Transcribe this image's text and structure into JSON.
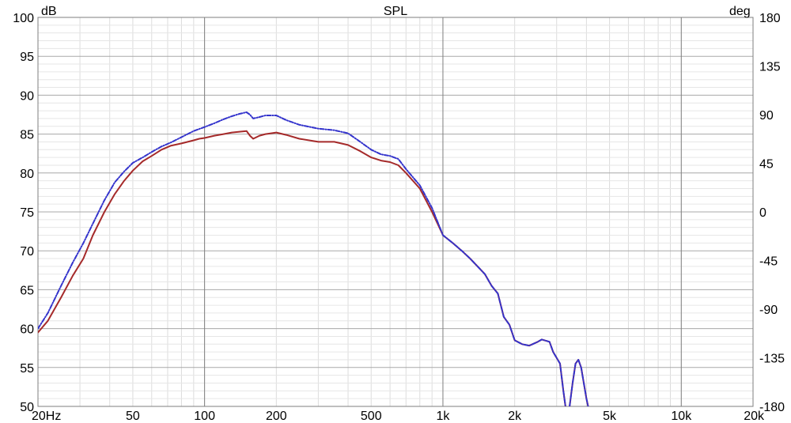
{
  "chart_data": {
    "type": "line",
    "title": "SPL",
    "y_unit_left": "dB",
    "y_unit_right": "deg",
    "x_scale": "log",
    "xlim": [
      20,
      20000
    ],
    "ylim": [
      50,
      100
    ],
    "ylim_right": [
      -180,
      180
    ],
    "grid": true,
    "x_ticks": [
      {
        "value": 20,
        "label": "20Hz"
      },
      {
        "value": 50,
        "label": "50"
      },
      {
        "value": 100,
        "label": "100"
      },
      {
        "value": 200,
        "label": "200"
      },
      {
        "value": 500,
        "label": "500"
      },
      {
        "value": 1000,
        "label": "1k"
      },
      {
        "value": 2000,
        "label": "2k"
      },
      {
        "value": 5000,
        "label": "5k"
      },
      {
        "value": 10000,
        "label": "10k"
      },
      {
        "value": 20000,
        "label": "20k"
      }
    ],
    "y_ticks": [
      50,
      55,
      60,
      65,
      70,
      75,
      80,
      85,
      90,
      95,
      100
    ],
    "y_ticks_right": [
      -180,
      -135,
      -90,
      -45,
      0,
      45,
      90,
      135,
      180
    ],
    "series": [
      {
        "color": "#a52a2a",
        "style": "solid",
        "points": [
          [
            20,
            59.5
          ],
          [
            22,
            61
          ],
          [
            25,
            64
          ],
          [
            28,
            66.8
          ],
          [
            31,
            69
          ],
          [
            34,
            72
          ],
          [
            38,
            75
          ],
          [
            42,
            77.3
          ],
          [
            46,
            79
          ],
          [
            50,
            80.3
          ],
          [
            55,
            81.5
          ],
          [
            60,
            82.2
          ],
          [
            66,
            83
          ],
          [
            72,
            83.5
          ],
          [
            80,
            83.8
          ],
          [
            90,
            84.2
          ],
          [
            95,
            84.4
          ],
          [
            100,
            84.5
          ],
          [
            110,
            84.8
          ],
          [
            120,
            85
          ],
          [
            130,
            85.2
          ],
          [
            140,
            85.3
          ],
          [
            150,
            85.4
          ],
          [
            155,
            84.8
          ],
          [
            160,
            84.4
          ],
          [
            170,
            84.8
          ],
          [
            180,
            85
          ],
          [
            190,
            85.1
          ],
          [
            200,
            85.2
          ],
          [
            220,
            84.9
          ],
          [
            250,
            84.4
          ],
          [
            300,
            84
          ],
          [
            350,
            84
          ],
          [
            400,
            83.6
          ],
          [
            450,
            82.8
          ],
          [
            500,
            82
          ],
          [
            550,
            81.6
          ],
          [
            600,
            81.4
          ],
          [
            650,
            81
          ],
          [
            700,
            80
          ],
          [
            800,
            78
          ],
          [
            900,
            75
          ],
          [
            1000,
            72
          ],
          [
            1100,
            71
          ],
          [
            1200,
            70
          ],
          [
            1300,
            69
          ],
          [
            1500,
            67
          ],
          [
            1600,
            65.5
          ],
          [
            1700,
            64.5
          ],
          [
            1800,
            61.5
          ],
          [
            1900,
            60.5
          ],
          [
            2000,
            58.5
          ],
          [
            2150,
            58
          ],
          [
            2300,
            57.8
          ],
          [
            2500,
            58.3
          ],
          [
            2600,
            58.6
          ],
          [
            2800,
            58.3
          ],
          [
            2900,
            57
          ],
          [
            3100,
            55.5
          ],
          [
            3200,
            52
          ],
          [
            3300,
            49
          ],
          [
            3400,
            50
          ],
          [
            3500,
            53
          ],
          [
            3600,
            55.5
          ],
          [
            3700,
            56
          ],
          [
            3800,
            55
          ],
          [
            4000,
            51
          ],
          [
            4200,
            48
          ]
        ]
      },
      {
        "color": "#3333cc",
        "style": "dashed",
        "points": [
          [
            20,
            60
          ],
          [
            22,
            62
          ],
          [
            25,
            65.5
          ],
          [
            28,
            68.5
          ],
          [
            31,
            71
          ],
          [
            34,
            73.5
          ],
          [
            38,
            76.5
          ],
          [
            42,
            78.8
          ],
          [
            46,
            80.2
          ],
          [
            50,
            81.3
          ],
          [
            55,
            82
          ],
          [
            60,
            82.7
          ],
          [
            66,
            83.4
          ],
          [
            72,
            83.9
          ],
          [
            80,
            84.6
          ],
          [
            90,
            85.4
          ],
          [
            100,
            85.9
          ],
          [
            110,
            86.4
          ],
          [
            120,
            86.9
          ],
          [
            130,
            87.3
          ],
          [
            140,
            87.6
          ],
          [
            150,
            87.8
          ],
          [
            155,
            87.5
          ],
          [
            160,
            87
          ],
          [
            170,
            87.2
          ],
          [
            180,
            87.4
          ],
          [
            200,
            87.4
          ],
          [
            220,
            86.8
          ],
          [
            250,
            86.2
          ],
          [
            300,
            85.7
          ],
          [
            350,
            85.5
          ],
          [
            400,
            85.1
          ],
          [
            450,
            84
          ],
          [
            500,
            83
          ],
          [
            550,
            82.4
          ],
          [
            600,
            82.2
          ],
          [
            650,
            81.8
          ],
          [
            700,
            80.5
          ],
          [
            800,
            78.4
          ],
          [
            900,
            75.5
          ],
          [
            1000,
            72
          ],
          [
            1100,
            71
          ],
          [
            1200,
            70
          ],
          [
            1300,
            69
          ],
          [
            1500,
            67
          ],
          [
            1600,
            65.5
          ],
          [
            1700,
            64.5
          ],
          [
            1800,
            61.5
          ],
          [
            1900,
            60.5
          ],
          [
            2000,
            58.5
          ],
          [
            2150,
            58
          ],
          [
            2300,
            57.8
          ],
          [
            2500,
            58.3
          ],
          [
            2600,
            58.6
          ],
          [
            2800,
            58.3
          ],
          [
            2900,
            57
          ],
          [
            3100,
            55.5
          ],
          [
            3200,
            52
          ],
          [
            3300,
            49
          ],
          [
            3400,
            50
          ],
          [
            3500,
            53
          ],
          [
            3600,
            55.5
          ],
          [
            3700,
            56
          ],
          [
            3800,
            55
          ],
          [
            4000,
            51
          ],
          [
            4200,
            48
          ]
        ]
      }
    ]
  }
}
